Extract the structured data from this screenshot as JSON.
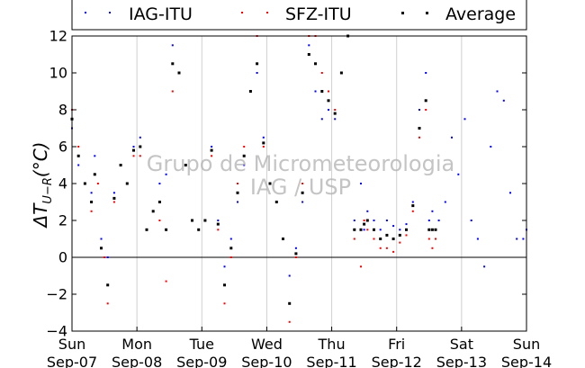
{
  "chart_data": {
    "type": "scatter",
    "title": "",
    "xlabel": "",
    "ylabel": "ΔT_{U−R}(°C)",
    "ylabel_main": "ΔT",
    "ylabel_sub": "U−R",
    "ylabel_tail": "(°C)",
    "xlim": [
      0,
      7
    ],
    "ylim": [
      -4,
      12
    ],
    "xticks": [
      {
        "x": 0,
        "day": "Sun",
        "date": "Sep-07"
      },
      {
        "x": 1,
        "day": "Mon",
        "date": "Sep-08"
      },
      {
        "x": 2,
        "day": "Tue",
        "date": "Sep-09"
      },
      {
        "x": 3,
        "day": "Wed",
        "date": "Sep-10"
      },
      {
        "x": 4,
        "day": "Thu",
        "date": "Sep-11"
      },
      {
        "x": 5,
        "day": "Fri",
        "date": "Sep-12"
      },
      {
        "x": 6,
        "day": "Sat",
        "date": "Sep-13"
      },
      {
        "x": 7,
        "day": "Sun",
        "date": "Sep-14"
      }
    ],
    "yticks": [
      -4,
      -2,
      0,
      2,
      4,
      6,
      8,
      10,
      12
    ],
    "grid": "vertical",
    "zero_line": true,
    "legend_position": "top",
    "watermark": [
      "Grupo de Micrometeorologia",
      "IAG / USP"
    ],
    "series": [
      {
        "name": "IAG-ITU",
        "color": "#0000ff",
        "x": [
          0.0,
          0.1,
          0.2,
          0.3,
          0.35,
          0.45,
          0.55,
          0.65,
          0.75,
          0.85,
          0.95,
          1.05,
          1.15,
          1.25,
          1.35,
          1.45,
          1.55,
          1.65,
          1.75,
          1.85,
          1.95,
          2.05,
          2.15,
          2.25,
          2.35,
          2.45,
          2.55,
          2.65,
          2.75,
          2.85,
          2.95,
          3.05,
          3.15,
          3.25,
          3.35,
          3.45,
          3.55,
          3.65,
          3.75,
          3.85,
          3.95,
          4.05,
          4.15,
          4.25,
          4.35,
          4.45,
          4.5,
          4.55,
          4.65,
          4.75,
          4.85,
          4.95,
          5.05,
          5.15,
          5.25,
          5.35,
          5.45,
          5.5,
          5.55,
          5.65,
          5.75,
          5.85,
          5.95,
          6.05,
          6.15,
          6.25,
          6.35,
          6.45,
          6.55,
          6.65,
          6.75,
          6.85,
          6.95,
          7.0
        ],
        "y": [
          7.0,
          5.0,
          4.0,
          3.5,
          5.5,
          1.0,
          0.0,
          3.5,
          5.0,
          4.0,
          6.0,
          6.5,
          1.5,
          2.5,
          4.0,
          4.5,
          11.5,
          10.0,
          5.0,
          2.0,
          1.5,
          2.0,
          6.0,
          2.0,
          -0.5,
          1.0,
          3.0,
          5.0,
          9.0,
          10.0,
          6.5,
          4.0,
          3.0,
          1.0,
          -1.0,
          0.5,
          3.0,
          11.5,
          9.0,
          7.5,
          8.0,
          7.5,
          10.0,
          12.0,
          2.0,
          4.0,
          1.5,
          2.5,
          2.0,
          1.5,
          2.0,
          1.7,
          1.5,
          1.8,
          3.0,
          8.0,
          10.0,
          2.0,
          2.5,
          2.0,
          3.0,
          6.5,
          4.5,
          7.5,
          2.0,
          1.0,
          -0.5,
          6.0,
          9.0,
          8.5,
          3.5,
          1.0,
          1.0,
          1.5
        ]
      },
      {
        "name": "SFZ-ITU",
        "color": "#ff0000",
        "x": [
          0.0,
          0.1,
          0.2,
          0.3,
          0.4,
          0.5,
          0.55,
          0.65,
          0.75,
          0.85,
          0.95,
          1.05,
          1.15,
          1.25,
          1.35,
          1.45,
          1.55,
          1.65,
          1.75,
          1.85,
          1.95,
          2.05,
          2.15,
          2.25,
          2.35,
          2.45,
          2.55,
          2.65,
          2.75,
          2.85,
          2.95,
          3.05,
          3.15,
          3.25,
          3.35,
          3.45,
          3.55,
          3.65,
          3.75,
          3.85,
          3.95,
          4.05,
          4.15,
          4.25,
          4.35,
          4.45,
          4.5,
          4.55,
          4.65,
          4.75,
          4.85,
          4.95,
          5.05,
          5.15,
          5.25,
          5.35,
          5.45,
          5.5,
          5.55,
          5.6
        ],
        "y": [
          8.0,
          6.0,
          4.0,
          2.5,
          4.0,
          0.0,
          -2.5,
          3.0,
          5.0,
          4.0,
          5.5,
          5.5,
          1.5,
          2.5,
          2.0,
          -1.3,
          9.0,
          10.0,
          5.0,
          2.0,
          1.5,
          2.0,
          5.5,
          1.5,
          -2.5,
          0.0,
          4.0,
          6.0,
          9.0,
          12.0,
          6.0,
          4.0,
          3.0,
          1.0,
          -3.5,
          0.0,
          4.0,
          12.0,
          12.0,
          10.0,
          9.0,
          8.0,
          10.0,
          12.0,
          1.0,
          -0.5,
          2.0,
          1.5,
          1.0,
          0.5,
          0.5,
          0.3,
          0.8,
          1.2,
          2.5,
          6.5,
          8.0,
          1.0,
          0.5,
          1.0
        ]
      },
      {
        "name": "Average",
        "color": "#000000",
        "x": [
          0.0,
          0.1,
          0.2,
          0.3,
          0.35,
          0.45,
          0.55,
          0.65,
          0.75,
          0.85,
          0.95,
          1.05,
          1.15,
          1.25,
          1.35,
          1.45,
          1.55,
          1.65,
          1.75,
          1.85,
          1.95,
          2.05,
          2.15,
          2.25,
          2.35,
          2.45,
          2.55,
          2.65,
          2.75,
          2.85,
          2.95,
          3.05,
          3.15,
          3.25,
          3.35,
          3.45,
          3.55,
          3.65,
          3.75,
          3.85,
          3.95,
          4.05,
          4.15,
          4.25,
          4.35,
          4.45,
          4.5,
          4.55,
          4.65,
          4.75,
          4.85,
          4.95,
          5.05,
          5.15,
          5.25,
          5.35,
          5.45,
          5.5,
          5.55,
          5.6
        ],
        "y": [
          7.5,
          5.5,
          4.0,
          3.0,
          4.5,
          0.5,
          -1.5,
          3.2,
          5.0,
          4.0,
          5.8,
          6.0,
          1.5,
          2.5,
          3.0,
          1.5,
          10.5,
          10.0,
          5.0,
          2.0,
          1.5,
          2.0,
          5.8,
          1.8,
          -1.5,
          0.5,
          3.5,
          5.5,
          9.0,
          10.5,
          6.2,
          4.0,
          3.0,
          1.0,
          -2.5,
          0.2,
          3.5,
          11.0,
          10.5,
          9.0,
          8.5,
          7.8,
          10.0,
          12.0,
          1.5,
          1.5,
          1.8,
          2.0,
          1.5,
          1.0,
          1.2,
          1.0,
          1.2,
          1.5,
          2.8,
          7.0,
          8.5,
          1.5,
          1.5,
          1.5
        ]
      }
    ]
  }
}
